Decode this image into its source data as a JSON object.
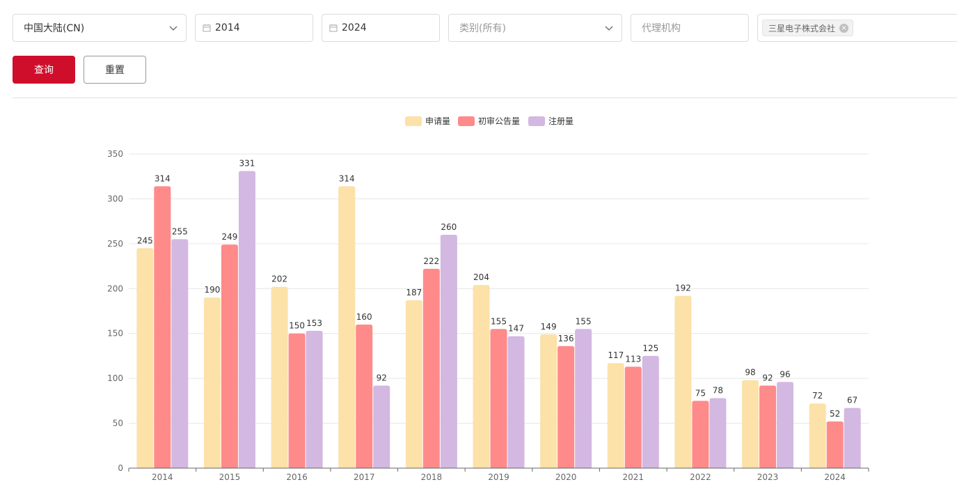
{
  "filters": {
    "region": {
      "value": "中国大陆(CN)"
    },
    "start_year": {
      "value": "2014"
    },
    "end_year": {
      "value": "2024"
    },
    "category": {
      "placeholder": "类别(所有)"
    },
    "agency": {
      "placeholder": "代理机构"
    },
    "applicant": {
      "tags": [
        "三星电子株式会社"
      ]
    }
  },
  "buttons": {
    "query": "查询",
    "reset": "重置"
  },
  "colors": {
    "primary": "#cf0e2c",
    "series": [
      "#fce1a8",
      "#ff8a8a",
      "#d3b8e2"
    ]
  },
  "chart_data": {
    "type": "bar",
    "categories": [
      "2014",
      "2015",
      "2016",
      "2017",
      "2018",
      "2019",
      "2020",
      "2021",
      "2022",
      "2023",
      "2024"
    ],
    "series": [
      {
        "name": "申请量",
        "values": [
          245,
          190,
          202,
          314,
          187,
          204,
          149,
          117,
          192,
          98,
          72
        ]
      },
      {
        "name": "初审公告量",
        "values": [
          314,
          249,
          150,
          160,
          222,
          155,
          136,
          113,
          75,
          92,
          52
        ]
      },
      {
        "name": "注册量",
        "values": [
          255,
          331,
          153,
          92,
          260,
          147,
          155,
          125,
          78,
          96,
          67
        ]
      }
    ],
    "ylim": [
      0,
      350
    ],
    "yticks": [
      0,
      50,
      100,
      150,
      200,
      250,
      300,
      350
    ],
    "grid": true,
    "legend": "top-center",
    "data_labels": true
  }
}
